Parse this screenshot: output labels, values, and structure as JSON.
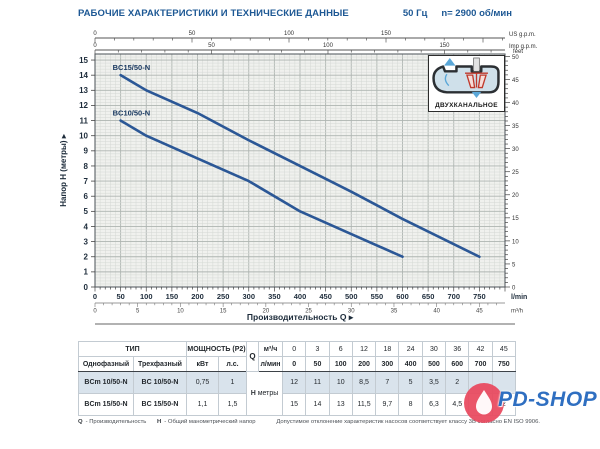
{
  "header": {
    "title": "РАБОЧИЕ ХАРАКТЕРИСТИКИ И ТЕХНИЧЕСКИЕ ДАННЫЕ",
    "frequency": "50 Гц",
    "speed": "n= 2900 об/мин"
  },
  "chart_data": {
    "type": "line",
    "xlabel": "Производительность Q",
    "ylabel": "Напор Н (метры)",
    "x_axis": {
      "primary_unit": "l/min",
      "primary_ticks": [
        0,
        50,
        100,
        150,
        200,
        250,
        300,
        350,
        400,
        450,
        500,
        550,
        600,
        650,
        700,
        750
      ],
      "secondary_unit": "m³/h",
      "secondary_ticks": [
        0,
        5,
        10,
        15,
        20,
        25,
        30,
        35,
        40,
        45
      ],
      "top_unit_1": "US g.p.m.",
      "top_ticks_1": [
        0,
        50,
        100,
        150
      ],
      "top_unit_2": "Imp g.p.m.",
      "top_ticks_2": [
        0,
        50,
        100,
        150
      ],
      "range_lmin": [
        0,
        800
      ]
    },
    "y_axis": {
      "unit_left": "метры",
      "ticks_m": [
        0,
        1,
        2,
        3,
        4,
        5,
        6,
        7,
        8,
        9,
        10,
        11,
        12,
        13,
        14,
        15
      ],
      "unit_right": "feet",
      "ticks_feet": [
        0,
        5,
        10,
        15,
        20,
        25,
        30,
        35,
        40,
        45,
        50
      ],
      "range_m": [
        0,
        15.4
      ]
    },
    "series": [
      {
        "name": "BC15/50-N",
        "points": [
          [
            50,
            14
          ],
          [
            100,
            13
          ],
          [
            200,
            11.5
          ],
          [
            300,
            9.7
          ],
          [
            400,
            8
          ],
          [
            500,
            6.3
          ],
          [
            600,
            4.5
          ],
          [
            750,
            2
          ]
        ]
      },
      {
        "name": "BC10/50-N",
        "points": [
          [
            50,
            11
          ],
          [
            100,
            10
          ],
          [
            200,
            8.5
          ],
          [
            300,
            7
          ],
          [
            400,
            5
          ],
          [
            500,
            3.5
          ],
          [
            600,
            2
          ]
        ]
      }
    ],
    "grid": {
      "minor_lmin": 10,
      "major_lmin": 50,
      "minor_m": 0.2,
      "major_m": 1
    }
  },
  "inset": {
    "label": "ДВУХКАНАЛЬНОЕ"
  },
  "table": {
    "type_header": "ТИП",
    "single_phase": "Однофазный",
    "three_phase": "Трехфазный",
    "power_header": "МОЩНОСТЬ (P2)",
    "kw": "кВт",
    "hp": "л.с.",
    "q": "Q",
    "m3h_unit": "м³/ч",
    "lmin_unit": "л/мин",
    "h_label": "Н",
    "h_unit": "метры",
    "q_m3h": [
      "0",
      "3",
      "6",
      "12",
      "18",
      "24",
      "30",
      "36",
      "42",
      "45"
    ],
    "q_lmin": [
      "0",
      "50",
      "100",
      "200",
      "300",
      "400",
      "500",
      "600",
      "700",
      "750"
    ],
    "rows": [
      {
        "single": "BCm 10/50-N",
        "three": "BC 10/50-N",
        "kw": "0,75",
        "hp": "1",
        "h": [
          "12",
          "11",
          "10",
          "8,5",
          "7",
          "5",
          "3,5",
          "2",
          "",
          ""
        ]
      },
      {
        "single": "BCm 15/50-N",
        "three": "BC 15/50-N",
        "kw": "1,1",
        "hp": "1,5",
        "h": [
          "15",
          "14",
          "13",
          "11,5",
          "9,7",
          "8",
          "6,3",
          "4,5",
          "",
          "2"
        ]
      }
    ]
  },
  "footer": {
    "q_key": "Q",
    "q_text": "- Производительность",
    "h_key": "Н",
    "h_text": "- Общий манометрический напор",
    "tolerance": "Допустимое отклонение характеристик насосов соответствует классу 3В согласно EN ISO 9906."
  },
  "watermark": {
    "text": "PD-SHOP"
  },
  "colors": {
    "title_blue": "#1d5894",
    "curve_blue": "#2b5796",
    "axis_text": "#1c2b3a",
    "plot_bg": "#f0f1ee",
    "grid_minor": "#d4d8d4",
    "grid_major": "#aeb5b1",
    "table_highlight": "#d9e3ec",
    "watermark_red": "#e8485e",
    "watermark_blue": "#2f6fc1"
  }
}
